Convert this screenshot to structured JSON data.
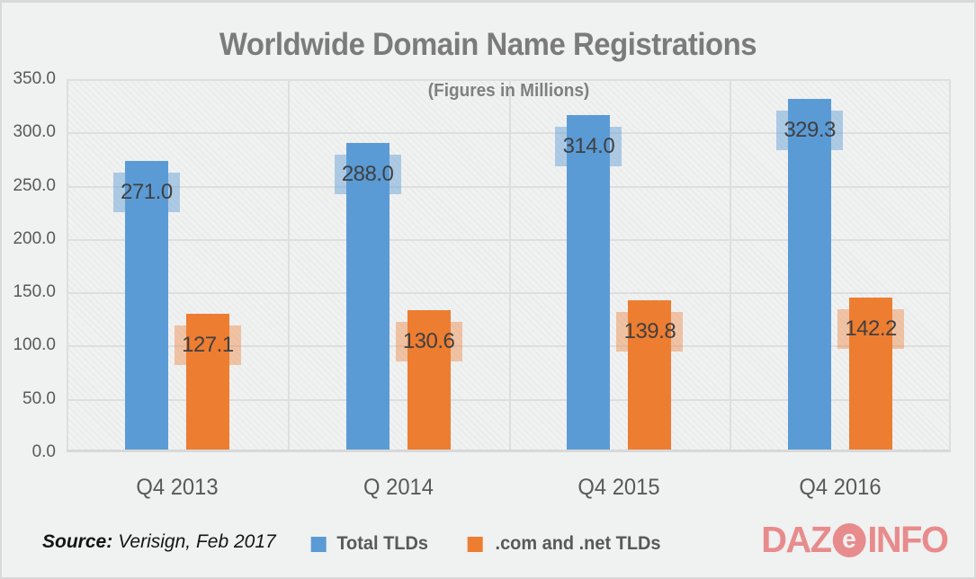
{
  "title": "Worldwide Domain Name Registrations",
  "subtitle": "(Figures in Millions)",
  "source": {
    "label": "Source:",
    "text": "Verisign, Feb 2017"
  },
  "logo": {
    "part1": "DAZ",
    "circle_letter": "e",
    "part2": "INFO",
    "color": "#e88b8c",
    "letter_color": "#f0f1f1"
  },
  "colors": {
    "background": "#f0f1f1",
    "series_blue": "#5B9BD5",
    "series_orange": "#ED7D31",
    "label_box_blue": "rgba(91,155,213,0.45)",
    "label_box_orange": "rgba(237,125,49,0.40)",
    "gridline": "#dedede",
    "axis_text": "#595959",
    "title_text": "#7b7b7b",
    "value_text": "#404040"
  },
  "chart_data": {
    "type": "bar",
    "categories": [
      "Q4 2013",
      "Q 2014",
      "Q4 2015",
      "Q4 2016"
    ],
    "series": [
      {
        "name": "Total TLDs",
        "color": "#5B9BD5",
        "label_box": "rgba(91,155,213,0.45)",
        "values": [
          271.0,
          288.0,
          314.0,
          329.3
        ]
      },
      {
        "name": ".com and .net TLDs",
        "color": "#ED7D31",
        "label_box": "rgba(237,125,49,0.40)",
        "values": [
          127.1,
          130.6,
          139.8,
          142.2
        ]
      }
    ],
    "title": "Worldwide Domain Name Registrations",
    "subtitle": "(Figures in Millions)",
    "xlabel": "",
    "ylabel": "",
    "ylim": [
      0,
      350
    ],
    "ytick_step": 50,
    "yticks": [
      "350.0",
      "300.0",
      "250.0",
      "200.0",
      "150.0",
      "100.0",
      "50.0",
      "0.0"
    ],
    "grid": true,
    "data_labels": true,
    "legend_position": "bottom"
  }
}
